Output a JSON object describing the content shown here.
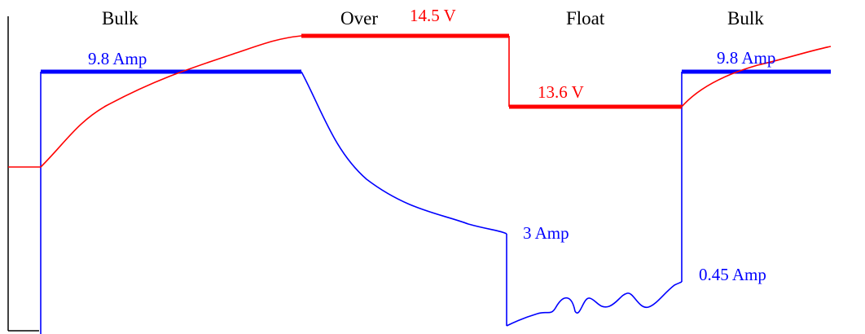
{
  "phases": {
    "bulk_1": "Bulk",
    "over": "Over",
    "float": "Float",
    "bulk_2": "Bulk"
  },
  "values": {
    "current_bulk_1": "9.8 Amp",
    "voltage_over": "14.5 V",
    "voltage_float": "13.6 V",
    "current_over_end": "3 Amp",
    "current_float_end": "0.45 Amp",
    "current_bulk_2": "9.8 Amp"
  },
  "colors": {
    "voltage": "#ff0000",
    "current": "#0000ff",
    "axis": "#000000"
  }
}
